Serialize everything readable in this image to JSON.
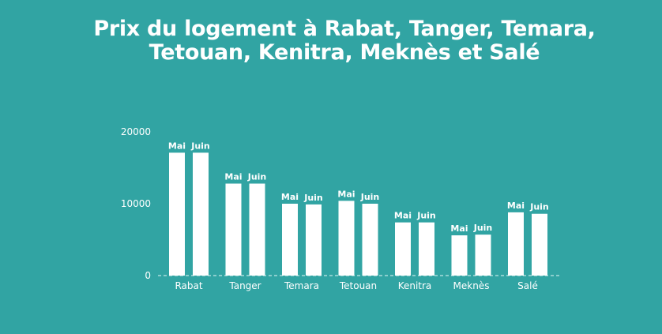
{
  "title_lines": [
    "Prix du logement à Rabat, Tanger, Temara,",
    "Tetouan, Kenitra, Meknès et Salé"
  ],
  "colors": {
    "background": "#31a4a3",
    "bars": "#ffffff",
    "text": "#ffffff",
    "baseline": "#a9dcdb"
  },
  "chart_data": {
    "type": "bar",
    "title": "Prix du logement à Rabat, Tanger, Temara, Tetouan, Kenitra, Meknès et Salé",
    "categories": [
      "Rabat",
      "Tanger",
      "Temara",
      "Tetouan",
      "Kenitra",
      "Meknès",
      "Salé"
    ],
    "series": [
      {
        "name": "Mai",
        "values": [
          17100,
          12800,
          10000,
          10400,
          7400,
          5600,
          8800
        ]
      },
      {
        "name": "Juin",
        "values": [
          17100,
          12800,
          9900,
          10000,
          7400,
          5700,
          8600
        ]
      }
    ],
    "yticks": [
      "0",
      "10000",
      "20000"
    ],
    "ylim": [
      0,
      20000
    ],
    "xlabel": "",
    "ylabel": "",
    "grid": false,
    "legend": "none"
  }
}
